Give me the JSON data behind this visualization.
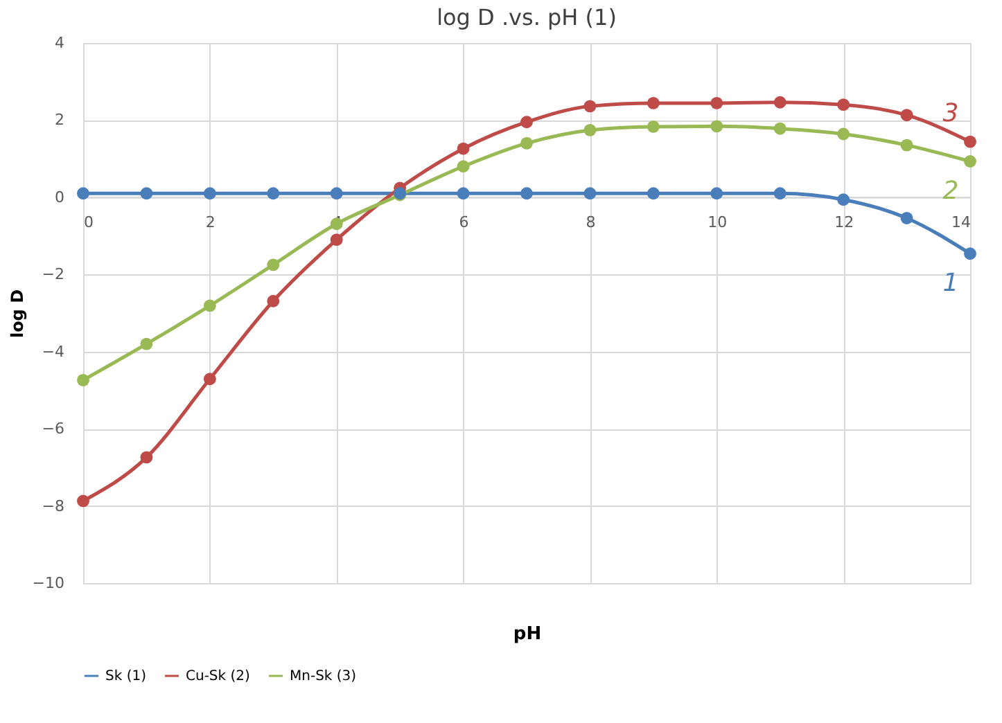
{
  "chart_data": {
    "type": "line",
    "title": "log D .vs. pH (1)",
    "xlabel": "pH",
    "ylabel": "log D",
    "x": [
      0,
      1,
      2,
      3,
      4,
      5,
      6,
      7,
      8,
      9,
      10,
      11,
      12,
      13,
      14
    ],
    "series": [
      {
        "name": "Sk (1)",
        "color": "#4a7ebb",
        "values": [
          0.1,
          0.1,
          0.1,
          0.1,
          0.1,
          0.1,
          0.1,
          0.1,
          0.1,
          0.1,
          0.1,
          0.1,
          -0.06,
          -0.54,
          -1.46
        ]
      },
      {
        "name": "Cu-Sk (2)",
        "color": "#be4b48",
        "values": [
          -7.87,
          -6.74,
          -4.71,
          -2.69,
          -1.1,
          0.24,
          1.26,
          1.95,
          2.36,
          2.44,
          2.44,
          2.46,
          2.4,
          2.13,
          1.44
        ]
      },
      {
        "name": "Mn-Sk (3)",
        "color": "#98b954",
        "values": [
          -4.74,
          -3.8,
          -2.81,
          -1.75,
          -0.69,
          0.06,
          0.8,
          1.4,
          1.74,
          1.83,
          1.84,
          1.78,
          1.64,
          1.35,
          0.93
        ]
      }
    ],
    "annotations": [
      "1",
      "3",
      "2"
    ],
    "xlim": [
      0,
      14
    ],
    "xticks": [
      0,
      2,
      4,
      6,
      8,
      10,
      12,
      14
    ],
    "ylim": [
      -10,
      4
    ],
    "yticks": [
      -10,
      -8,
      -6,
      -4,
      -2,
      0,
      2,
      4
    ],
    "grid": true,
    "legend": "bottom",
    "marker": "circle",
    "line_style": "solid"
  }
}
